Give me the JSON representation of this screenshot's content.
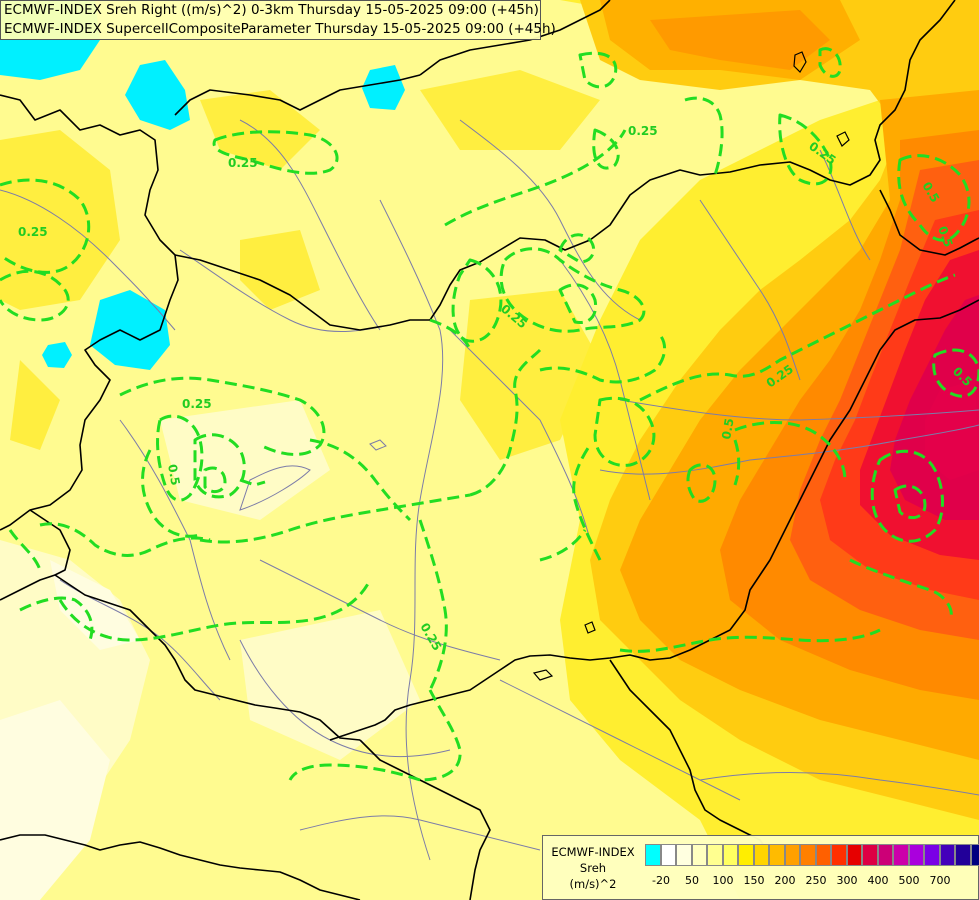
{
  "header": {
    "line1": "ECMWF-INDEX Sreh Right ((m/s)^2) 0-3km Thursday 15-05-2025 09:00 (+45h)",
    "line2": "ECMWF-INDEX SupercellCompositeParameter Thursday 15-05-2025 09:00 (+45h)"
  },
  "legend": {
    "title_line1": "ECMWF-INDEX",
    "title_line2": "Sreh",
    "title_line3": "(m/s)^2",
    "colors": [
      "#00ffff",
      "#ffffff",
      "#ffffe0",
      "#ffffc0",
      "#ffff90",
      "#ffff60",
      "#ffee00",
      "#ffd400",
      "#ffbb00",
      "#ffa000",
      "#ff8000",
      "#ff6000",
      "#ff3000",
      "#e60000",
      "#dd0044",
      "#cc0077",
      "#cc00aa",
      "#aa00dd",
      "#7a00e6",
      "#4400bb",
      "#220099",
      "#000080"
    ],
    "tick_labels": [
      "-20",
      "50",
      "100",
      "150",
      "200",
      "250",
      "300",
      "400",
      "500",
      "700"
    ]
  },
  "map": {
    "contour_labels": [
      "0.25",
      "0.25",
      "0.25",
      "0.25",
      "0.25",
      "0.25",
      "0.25",
      "0.5",
      "0.5",
      "0.5",
      "0.5",
      "0.25",
      "0.5"
    ],
    "colors": {
      "pale": "#fffbb8",
      "light": "#ffff80",
      "yellow": "#ffee30",
      "gold": "#ffcc00",
      "orange": "#ffaa00",
      "dark_orange": "#ff7a10",
      "red": "#ff3a1a",
      "crimson": "#e4004a",
      "cyan": "#00f0ff",
      "contour": "#22dd22",
      "border": "#000000",
      "river": "#7a7aa0"
    }
  }
}
